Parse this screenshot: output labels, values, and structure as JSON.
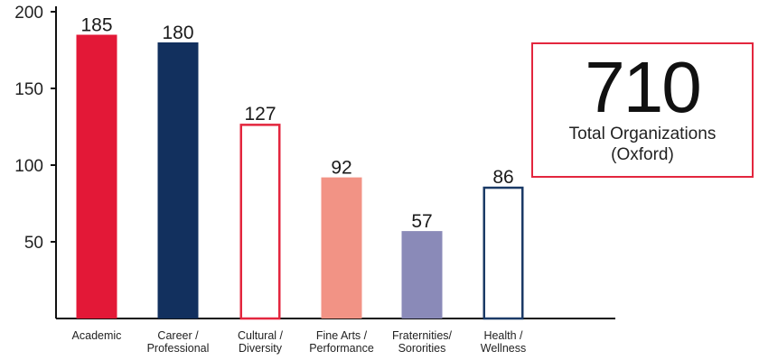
{
  "chart_data": {
    "type": "bar",
    "categories": [
      [
        "Academic"
      ],
      [
        "Career /",
        "Professional"
      ],
      [
        "Cultural /",
        "Diversity"
      ],
      [
        "Fine Arts /",
        "Performance"
      ],
      [
        "Fraternities/",
        "Sororities"
      ],
      [
        "Health /",
        "Wellness"
      ]
    ],
    "values": [
      185,
      180,
      127,
      92,
      57,
      86
    ],
    "data_labels": [
      "185",
      "180",
      "127",
      "92",
      "57",
      "86"
    ],
    "bar_styles": [
      {
        "fill": "#e31837",
        "stroke": "#e31837"
      },
      {
        "fill": "#12305e",
        "stroke": "#12305e"
      },
      {
        "fill": "#ffffff",
        "stroke": "#e3263e"
      },
      {
        "fill": "#f29385",
        "stroke": "#f29385"
      },
      {
        "fill": "#8a8ab8",
        "stroke": "#8a8ab8"
      },
      {
        "fill": "#ffffff",
        "stroke": "#1b3a66"
      }
    ],
    "yticks": [
      50,
      100,
      150,
      200
    ],
    "ylim": [
      0,
      200
    ],
    "grid": false,
    "axis_color": "#111111"
  },
  "summary": {
    "value": "710",
    "label_line1": "Total Organizations",
    "label_line2": "(Oxford)",
    "border_color": "#e3263e"
  }
}
